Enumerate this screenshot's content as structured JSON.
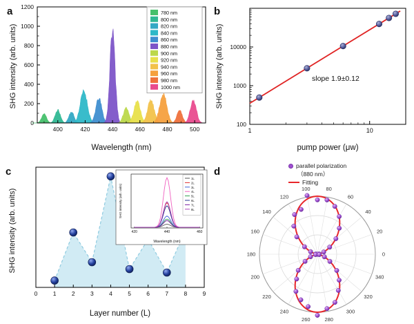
{
  "figure": {
    "background": "#ffffff",
    "panel_labels": {
      "a": "a",
      "b": "b",
      "c": "c",
      "d": "d"
    }
  },
  "chart_data": [
    {
      "panel": "a",
      "type": "area",
      "xlabel": "Wavelength (nm)",
      "ylabel": "SHG intensity (arb. units)",
      "xlim": [
        385,
        508
      ],
      "ylim": [
        0,
        1200
      ],
      "xticks": [
        400,
        420,
        440,
        460,
        480,
        500
      ],
      "yticks": [
        0,
        200,
        400,
        600,
        800,
        1000,
        1200
      ],
      "legend_position": "top-right",
      "series": [
        {
          "name": "780 nm",
          "color": "#46c06c",
          "center": 390,
          "peak": 95,
          "sigma": 1.8
        },
        {
          "name": "800 nm",
          "color": "#30b894",
          "center": 400,
          "peak": 135,
          "sigma": 1.9
        },
        {
          "name": "820 nm",
          "color": "#33a9c4",
          "center": 410,
          "peak": 115,
          "sigma": 1.9
        },
        {
          "name": "840 nm",
          "color": "#2eb8c8",
          "center": 419,
          "peak": 330,
          "sigma": 2.6
        },
        {
          "name": "860 nm",
          "color": "#3f8ed0",
          "center": 430,
          "peak": 255,
          "sigma": 2.2
        },
        {
          "name": "880 nm",
          "color": "#7d55c8",
          "center": 440,
          "peak": 950,
          "sigma": 1.9
        },
        {
          "name": "900 nm",
          "color": "#bcd84a",
          "center": 450,
          "peak": 165,
          "sigma": 2.0
        },
        {
          "name": "920 nm",
          "color": "#e8e04a",
          "center": 458,
          "peak": 225,
          "sigma": 2.4
        },
        {
          "name": "940 nm",
          "color": "#f2c24a",
          "center": 468,
          "peak": 235,
          "sigma": 2.4
        },
        {
          "name": "960 nm",
          "color": "#f5a03e",
          "center": 477,
          "peak": 300,
          "sigma": 2.6
        },
        {
          "name": "980 nm",
          "color": "#ef713c",
          "center": 489,
          "peak": 130,
          "sigma": 2.0
        },
        {
          "name": "1000 nm",
          "color": "#e94b8e",
          "center": 499,
          "peak": 235,
          "sigma": 2.2
        }
      ]
    },
    {
      "panel": "b",
      "type": "scatter",
      "scale": "log-log",
      "xlabel": "pump power (μw)",
      "ylabel": "SHG intensity (arb. units)",
      "annotation": "slope 1.9±0.12",
      "xlim": [
        1,
        20
      ],
      "ylim": [
        100,
        100000
      ],
      "xticks": [
        1,
        10
      ],
      "yticks": [
        100,
        1000,
        10000
      ],
      "points": [
        [
          1.2,
          494
        ],
        [
          3,
          2820
        ],
        [
          6,
          10540
        ],
        [
          12,
          39300
        ],
        [
          14.5,
          56300
        ],
        [
          16.5,
          72000
        ]
      ],
      "fit": {
        "x": [
          1,
          18
        ],
        "y": [
          350,
          85000
        ],
        "color": "#e02424"
      },
      "point_color": "#565d9e"
    },
    {
      "panel": "c",
      "type": "scatter",
      "xlabel": "Layer number (L)",
      "ylabel": "SHG intensity (arb. units)",
      "xlim": [
        0,
        9
      ],
      "xticks": [
        0,
        1,
        2,
        3,
        4,
        5,
        6,
        7,
        8,
        9
      ],
      "points": [
        [
          1,
          0.06
        ],
        [
          2,
          0.48
        ],
        [
          3,
          0.22
        ],
        [
          4,
          0.97
        ],
        [
          5,
          0.16
        ],
        [
          6,
          0.42
        ],
        [
          7,
          0.13
        ],
        [
          8,
          0.5
        ]
      ],
      "area_color": "#c9e7f2",
      "dash_color": "#8fcbe0",
      "point_color": "#24419e",
      "inset": {
        "xlabel": "Wavelength (nm)",
        "ylabel": "SHG intensity (arb. units)",
        "xticks": [
          420,
          440,
          460
        ],
        "center": 440,
        "legend": [
          "1L",
          "2L",
          "3L",
          "4L",
          "5L",
          "6L",
          "7L",
          "8L"
        ],
        "colors": [
          "#555555",
          "#e03030",
          "#4060d8",
          "#f060c0",
          "#30a050",
          "#283593",
          "#7b1fa2",
          "#ab47bc"
        ]
      }
    },
    {
      "panel": "d",
      "type": "polar",
      "angle_labels": [
        0,
        20,
        40,
        60,
        80,
        100,
        120,
        140,
        160,
        180,
        200,
        220,
        240,
        260,
        280,
        300,
        320,
        340
      ],
      "legend": {
        "series_line1": "parallel polarization",
        "series_line2": "（880 nm）",
        "fit_label": "Fitting"
      },
      "pattern": "cos2-vertical-lobes",
      "point_color": "#a050d0",
      "fit_color": "#e8262a"
    }
  ]
}
